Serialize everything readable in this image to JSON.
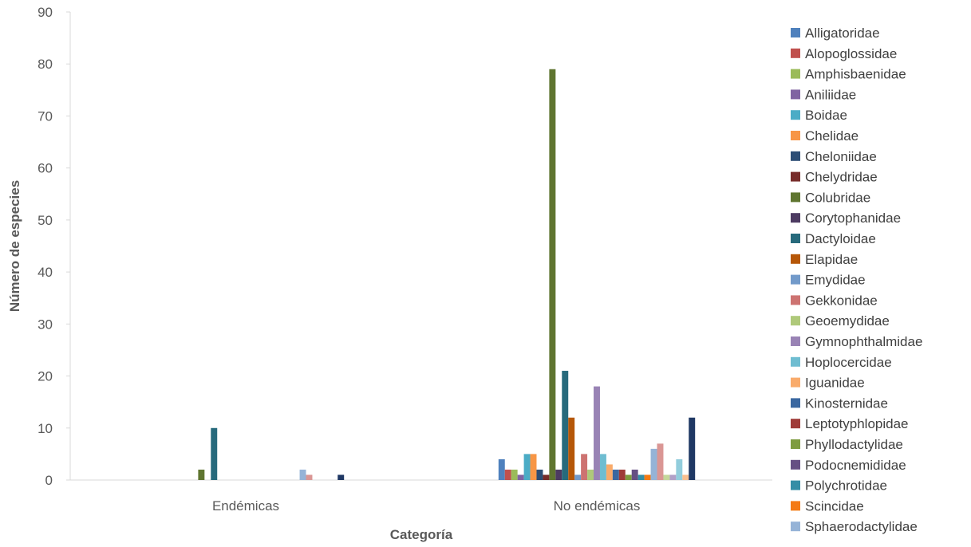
{
  "chart_data": {
    "type": "bar",
    "xlabel": "Categoría",
    "ylabel": "Número de especies",
    "ylim": [
      0,
      90
    ],
    "yticks": [
      0,
      10,
      20,
      30,
      40,
      50,
      60,
      70,
      80,
      90
    ],
    "categories": [
      "Endémicas",
      "No endémicas"
    ],
    "gridlines": false,
    "legend_position": "right",
    "series": [
      {
        "name": "Alligatoridae",
        "color": "#4f81bd",
        "values": [
          0,
          4
        ]
      },
      {
        "name": "Alopoglossidae",
        "color": "#c0504d",
        "values": [
          0,
          2
        ]
      },
      {
        "name": "Amphisbaenidae",
        "color": "#9bbb59",
        "values": [
          0,
          2
        ]
      },
      {
        "name": "Aniliidae",
        "color": "#8064a2",
        "values": [
          0,
          1
        ]
      },
      {
        "name": "Boidae",
        "color": "#4bacc6",
        "values": [
          0,
          5
        ]
      },
      {
        "name": "Chelidae",
        "color": "#f79646",
        "values": [
          0,
          5
        ]
      },
      {
        "name": "Cheloniidae",
        "color": "#2c4d75",
        "values": [
          0,
          2
        ]
      },
      {
        "name": "Chelydridae",
        "color": "#772c2a",
        "values": [
          0,
          1
        ]
      },
      {
        "name": "Colubridae",
        "color": "#5f7530",
        "values": [
          2,
          79
        ]
      },
      {
        "name": "Corytophanidae",
        "color": "#4d3b62",
        "values": [
          0,
          2
        ]
      },
      {
        "name": "Dactyloidae",
        "color": "#276a7c",
        "values": [
          10,
          21
        ]
      },
      {
        "name": "Elapidae",
        "color": "#b65708",
        "values": [
          0,
          12
        ]
      },
      {
        "name": "Emydidae",
        "color": "#729aca",
        "values": [
          0,
          1
        ]
      },
      {
        "name": "Gekkonidae",
        "color": "#cd7371",
        "values": [
          0,
          5
        ]
      },
      {
        "name": "Geoemydidae",
        "color": "#afc97a",
        "values": [
          0,
          2
        ]
      },
      {
        "name": "Gymnophthalmidae",
        "color": "#9983b5",
        "values": [
          0,
          18
        ]
      },
      {
        "name": "Hoplocercidae",
        "color": "#6fbdd1",
        "values": [
          0,
          5
        ]
      },
      {
        "name": "Iguanidae",
        "color": "#f9ab6b",
        "values": [
          0,
          3
        ]
      },
      {
        "name": "Kinosternidae",
        "color": "#3a67a0",
        "values": [
          0,
          2
        ]
      },
      {
        "name": "Leptotyphlopidae",
        "color": "#9f3b38",
        "values": [
          0,
          2
        ]
      },
      {
        "name": "Phyllodactylidae",
        "color": "#7e9c40",
        "values": [
          0,
          1
        ]
      },
      {
        "name": "Podocnemididae",
        "color": "#664f83",
        "values": [
          0,
          2
        ]
      },
      {
        "name": "Polychrotidae",
        "color": "#358ea6",
        "values": [
          0,
          1
        ]
      },
      {
        "name": "Scincidae",
        "color": "#f47a14",
        "values": [
          0,
          1
        ]
      },
      {
        "name": "Sphaerodactylidae",
        "color": "#95b3d7",
        "values": [
          2,
          6
        ]
      },
      {
        "name": "",
        "color": "#da9694",
        "values": [
          1,
          7
        ]
      },
      {
        "name": "",
        "color": "#c4d79b",
        "values": [
          0,
          1
        ]
      },
      {
        "name": "",
        "color": "#b1a0c7",
        "values": [
          0,
          1
        ]
      },
      {
        "name": "",
        "color": "#92cddc",
        "values": [
          0,
          4
        ]
      },
      {
        "name": "",
        "color": "#fabf8f",
        "values": [
          0,
          1
        ]
      },
      {
        "name": "",
        "color": "#1f3864",
        "values": [
          1,
          12
        ]
      }
    ]
  }
}
